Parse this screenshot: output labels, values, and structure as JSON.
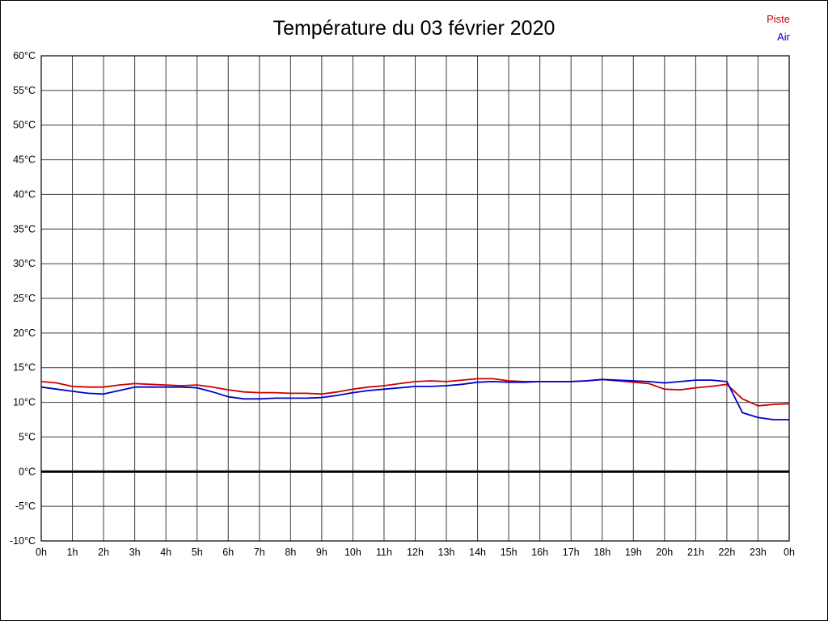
{
  "title": "Température du 03 février 2020",
  "legend": [
    {
      "label": "Piste",
      "color": "#cc0000"
    },
    {
      "label": "Air",
      "color": "#0000cc"
    }
  ],
  "chart_data": {
    "type": "line",
    "title": "Température du 03 février 2020",
    "xlabel": "",
    "ylabel": "",
    "xlim": [
      0,
      24
    ],
    "ylim": [
      -10,
      60
    ],
    "ytick_step": 5,
    "grid": true,
    "zero_line_at": 0,
    "legend_position": "top-right",
    "y_tick_labels": [
      "60°C",
      "55°C",
      "50°C",
      "45°C",
      "40°C",
      "35°C",
      "30°C",
      "25°C",
      "20°C",
      "15°C",
      "10°C",
      "5°C",
      "0°C",
      "-5°C",
      "-10°C"
    ],
    "x_tick_labels": [
      "0h",
      "1h",
      "2h",
      "3h",
      "4h",
      "5h",
      "6h",
      "7h",
      "8h",
      "9h",
      "10h",
      "11h",
      "12h",
      "13h",
      "14h",
      "15h",
      "16h",
      "17h",
      "18h",
      "19h",
      "20h",
      "21h",
      "22h",
      "23h",
      "0h"
    ],
    "x_hours": [
      0,
      0.5,
      1,
      1.5,
      2,
      2.5,
      3,
      3.5,
      4,
      4.5,
      5,
      5.5,
      6,
      6.5,
      7,
      7.5,
      8,
      8.5,
      9,
      9.5,
      10,
      10.5,
      11,
      11.5,
      12,
      12.5,
      13,
      13.5,
      14,
      14.5,
      15,
      15.5,
      16,
      16.5,
      17,
      17.5,
      18,
      18.5,
      19,
      19.5,
      20,
      20.5,
      21,
      21.5,
      22,
      22.5,
      23,
      23.5,
      24
    ],
    "series": [
      {
        "name": "Piste",
        "color": "#cc0000",
        "values": [
          13.0,
          12.8,
          12.3,
          12.2,
          12.2,
          12.5,
          12.7,
          12.6,
          12.5,
          12.4,
          12.5,
          12.2,
          11.8,
          11.5,
          11.4,
          11.4,
          11.3,
          11.3,
          11.2,
          11.5,
          11.9,
          12.2,
          12.4,
          12.7,
          13.0,
          13.1,
          13.0,
          13.2,
          13.4,
          13.4,
          13.1,
          13.0,
          13.0,
          13.0,
          13.0,
          13.1,
          13.3,
          13.1,
          12.9,
          12.7,
          11.9,
          11.8,
          12.1,
          12.3,
          12.6,
          10.5,
          9.5,
          9.7,
          9.8
        ]
      },
      {
        "name": "Air",
        "color": "#0000cc",
        "values": [
          12.2,
          11.9,
          11.6,
          11.3,
          11.2,
          11.7,
          12.2,
          12.2,
          12.2,
          12.2,
          12.1,
          11.5,
          10.8,
          10.5,
          10.5,
          10.6,
          10.6,
          10.6,
          10.7,
          11.0,
          11.4,
          11.7,
          11.9,
          12.1,
          12.3,
          12.3,
          12.4,
          12.6,
          12.9,
          13.0,
          12.9,
          12.9,
          13.0,
          13.0,
          13.0,
          13.1,
          13.3,
          13.2,
          13.1,
          13.0,
          12.8,
          13.0,
          13.2,
          13.2,
          13.0,
          8.5,
          7.8,
          7.5,
          7.5
        ]
      }
    ]
  }
}
